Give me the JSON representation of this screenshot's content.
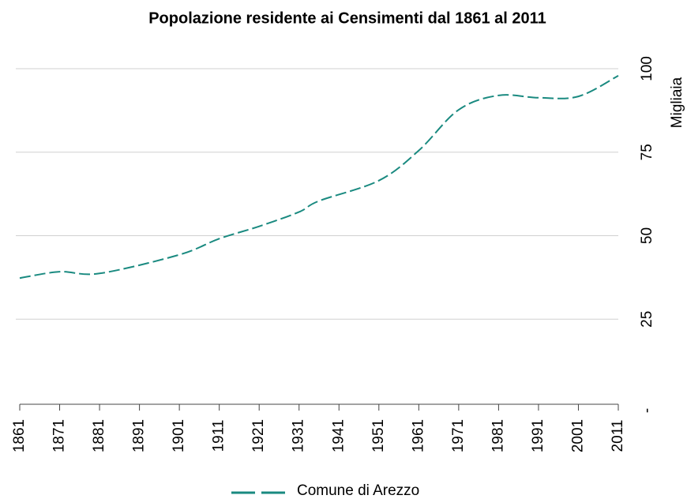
{
  "chart_data": {
    "type": "line",
    "title": "Popolazione residente ai Censimenti dal 1861 al 2011",
    "y_label": "Migliaia",
    "x": [
      1861,
      1871,
      1881,
      1901,
      1911,
      1921,
      1931,
      1936,
      1951,
      1961,
      1971,
      1981,
      1991,
      2001,
      2011
    ],
    "series": [
      {
        "name": "Comune di Arezzo",
        "color": "#1a8a80",
        "values": [
          37.3,
          39.2,
          38.7,
          44.3,
          49.1,
          52.8,
          57.1,
          60.4,
          66.5,
          75.5,
          87.7,
          92.0,
          91.3,
          91.7,
          97.9
        ]
      }
    ],
    "xlim": [
      1861,
      2011
    ],
    "xticks": [
      1861,
      1871,
      1881,
      1891,
      1901,
      1911,
      1921,
      1931,
      1941,
      1951,
      1961,
      1971,
      1981,
      1991,
      2001,
      2011
    ],
    "ylim": [
      0,
      100
    ],
    "yticks": [
      {
        "value": 0,
        "label": "-"
      },
      25,
      50,
      75,
      100
    ],
    "grid": true,
    "legend": "bottom"
  }
}
